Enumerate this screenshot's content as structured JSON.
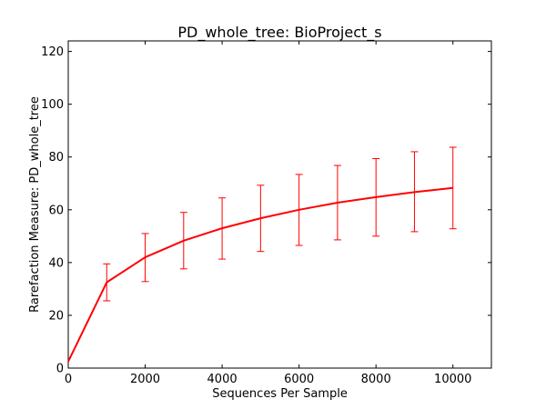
{
  "chart_data": {
    "type": "line",
    "title": "PD_whole_tree: BioProject_s",
    "xlabel": "Sequences Per Sample",
    "ylabel": "Rarefaction Measure: PD_whole_tree",
    "xlim": [
      0,
      11000
    ],
    "ylim": [
      0,
      124
    ],
    "xticks": [
      0,
      2000,
      4000,
      6000,
      8000,
      10000
    ],
    "yticks": [
      0,
      20,
      40,
      60,
      80,
      100,
      120
    ],
    "grid": false,
    "legend": "none",
    "series": [
      {
        "color": "#ff0000",
        "x": [
          0,
          1000,
          2000,
          3000,
          4000,
          5000,
          6000,
          7000,
          8000,
          9000,
          10000
        ],
        "y": [
          2.5,
          32.5,
          42,
          48.3,
          53,
          56.8,
          60,
          62.7,
          64.8,
          66.7,
          68.3
        ],
        "error_low": [
          2.5,
          25.5,
          32.8,
          37.6,
          41.3,
          44.2,
          46.5,
          48.6,
          50,
          51.7,
          52.8
        ],
        "error_high": [
          2.5,
          39.5,
          51,
          59,
          64.5,
          69.3,
          73.4,
          76.8,
          79.4,
          82,
          83.7
        ]
      }
    ]
  }
}
